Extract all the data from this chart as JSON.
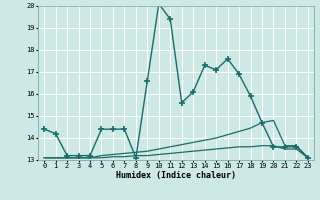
{
  "xlabel": "Humidex (Indice chaleur)",
  "bg_color": "#cde8e5",
  "grid_color": "#ffffff",
  "line_color": "#1a6b6b",
  "x_min": 0,
  "x_max": 23,
  "y_min": 13,
  "y_max": 20,
  "series": [
    {
      "x": [
        0,
        1,
        2,
        3,
        4,
        5,
        6,
        7,
        8,
        9,
        10,
        11,
        12,
        13,
        14,
        15,
        16,
        17,
        18,
        19,
        20,
        21,
        22,
        23
      ],
      "y": [
        14.4,
        14.2,
        13.2,
        13.2,
        13.2,
        14.4,
        14.4,
        14.4,
        13.1,
        16.6,
        20.1,
        19.4,
        15.6,
        16.1,
        17.3,
        17.1,
        17.6,
        16.9,
        15.9,
        14.7,
        13.6,
        13.6,
        13.6,
        13.1
      ],
      "linestyle": "-",
      "marker": "+",
      "markersize": 4,
      "linewidth": 1.0
    },
    {
      "x": [
        0,
        1,
        2,
        3,
        4,
        5,
        6,
        7,
        8,
        9,
        10,
        11,
        12,
        13,
        14,
        15,
        16,
        17,
        18,
        19,
        20,
        21,
        22,
        23
      ],
      "y": [
        13.1,
        13.1,
        13.1,
        13.1,
        13.1,
        13.2,
        13.25,
        13.3,
        13.35,
        13.4,
        13.5,
        13.6,
        13.7,
        13.8,
        13.9,
        14.0,
        14.15,
        14.3,
        14.45,
        14.7,
        14.8,
        13.65,
        13.65,
        13.1
      ],
      "linestyle": "-",
      "marker": null,
      "markersize": 0,
      "linewidth": 0.9
    },
    {
      "x": [
        0,
        1,
        2,
        3,
        4,
        5,
        6,
        7,
        8,
        9,
        10,
        11,
        12,
        13,
        14,
        15,
        16,
        17,
        18,
        19,
        20,
        21,
        22,
        23
      ],
      "y": [
        13.1,
        13.1,
        13.1,
        13.1,
        13.1,
        13.1,
        13.15,
        13.15,
        13.2,
        13.2,
        13.25,
        13.3,
        13.35,
        13.4,
        13.45,
        13.5,
        13.55,
        13.6,
        13.6,
        13.65,
        13.65,
        13.5,
        13.5,
        13.1
      ],
      "linestyle": "-",
      "marker": null,
      "markersize": 0,
      "linewidth": 0.9
    }
  ]
}
